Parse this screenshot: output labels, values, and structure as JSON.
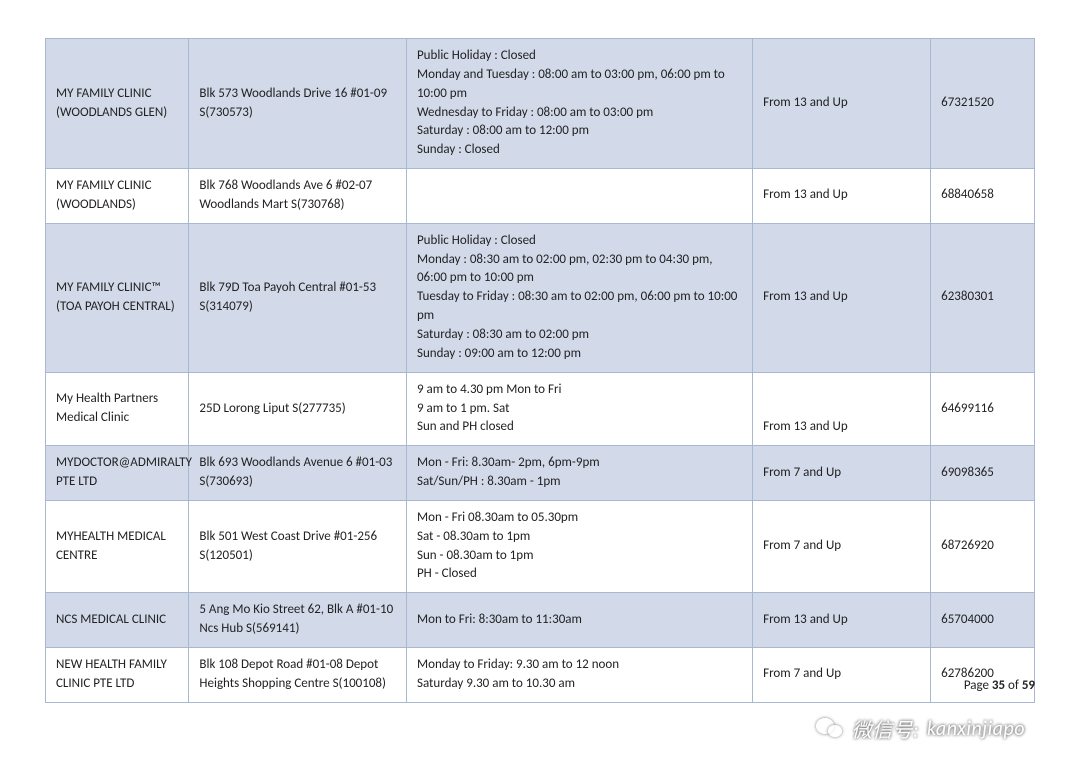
{
  "table": {
    "border_color": "#a8b8d0",
    "even_bg": "#d2daea",
    "odd_bg": "#ffffff",
    "font_size": 13,
    "column_widths_pct": [
      14.5,
      22,
      35,
      18,
      10.5
    ],
    "rows": [
      {
        "bg": "even",
        "name": "MY FAMILY CLINIC (WOODLANDS GLEN)",
        "address": "Blk 573 Woodlands Drive 16 #01-09  S(730573)",
        "hours": "Public Holiday :  Closed\n Monday and Tuesday : 08:00 am to 03:00 pm, 06:00 pm to 10:00 pm\n Wednesday to Friday : 08:00 am to 03:00 pm\n Saturday : 08:00 am to 12:00 pm\n Sunday :  Closed",
        "age": "From 13 and Up",
        "phone": "67321520"
      },
      {
        "bg": "odd",
        "name": "MY FAMILY CLINIC (WOODLANDS)",
        "address": "Blk 768 Woodlands Ave 6 #02-07 Woodlands Mart  S(730768)",
        "hours": "",
        "age": "From 13 and Up",
        "phone": "68840658"
      },
      {
        "bg": "even",
        "name": "MY FAMILY CLINIC™ (TOA PAYOH CENTRAL)",
        "address": "Blk 79D Toa Payoh Central #01-53  S(314079)",
        "hours": "Public Holiday :  Closed\n Monday : 08:30 am to 02:00 pm, 02:30 pm to 04:30 pm, 06:00 pm to 10:00 pm\n Tuesday to Friday : 08:30 am to 02:00 pm, 06:00 pm to 10:00 pm\n Saturday : 08:30 am to 02:00 pm\n Sunday : 09:00 am to 12:00 pm",
        "age": "From 13 and Up",
        "phone": "62380301"
      },
      {
        "bg": "odd",
        "name": "My Health Partners Medical Clinic",
        "address": "25D Lorong Liput  S(277735)",
        "hours": "9 am to 4.30 pm Mon to Fri\n9 am to 1 pm.      Sat\nSun and PH closed",
        "age": "From 13 and Up",
        "age_valign": "bottom",
        "phone": "64699116"
      },
      {
        "bg": "even",
        "name": "MYDOCTOR@ADMIRALTY PTE LTD",
        "address": "Blk 693 Woodlands Avenue 6 #01-03  S(730693)",
        "hours": "Mon - Fri: 8.30am- 2pm, 6pm-9pm\nSat/Sun/PH : 8.30am - 1pm",
        "age": "From 7 and Up",
        "phone": "69098365"
      },
      {
        "bg": "odd",
        "name": "MYHEALTH MEDICAL CENTRE",
        "address": "Blk 501 West Coast Drive #01-256  S(120501)",
        "hours": "Mon - Fri 08.30am to 05.30pm\nSat - 08.30am to 1pm\nSun - 08.30am to 1pm\nPH - Closed",
        "age": "From 7 and Up",
        "phone": "68726920"
      },
      {
        "bg": "even",
        "name": "NCS MEDICAL CLINIC",
        "address": "5 Ang Mo Kio Street 62, Blk A #01-10 Ncs Hub  S(569141)",
        "hours": "Mon to Fri: 8:30am to 11:30am",
        "age": "From 13 and Up",
        "phone": "65704000"
      },
      {
        "bg": "odd",
        "name": "NEW HEALTH FAMILY CLINIC PTE LTD",
        "address": "Blk 108 Depot Road #01-08 Depot Heights Shopping Centre  S(100108)",
        "hours": "Monday to Friday: 9.30 am to 12 noon\nSaturday 9.30 am to 10.30 am",
        "age": "From 7 and Up",
        "phone": "62786200"
      }
    ]
  },
  "footer": {
    "prefix": "Page ",
    "current": "35",
    "mid": " of ",
    "total": "59"
  },
  "watermark": {
    "label": "微信号:",
    "id": "kanxinjiapo"
  }
}
